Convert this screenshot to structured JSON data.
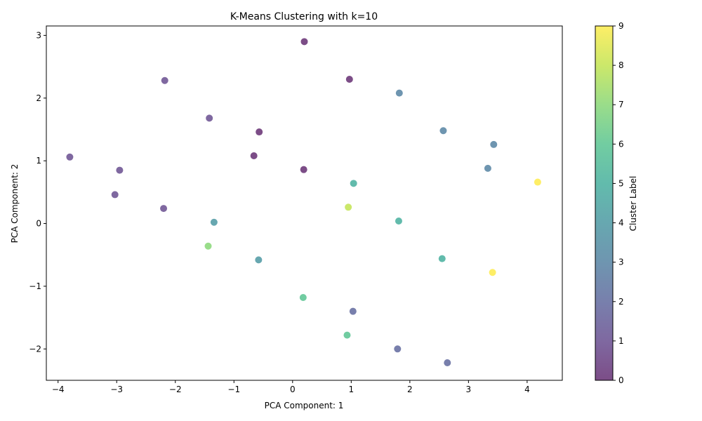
{
  "chart_data": {
    "type": "scatter",
    "title": "K-Means Clustering with k=10",
    "xlabel": "PCA Component: 1",
    "ylabel": "PCA Component: 2",
    "colorbar_label": "Cluster Label",
    "xlim": [
      -4.2,
      4.6
    ],
    "ylim": [
      -2.5,
      3.15
    ],
    "xticks": [
      -4,
      -3,
      -2,
      -1,
      0,
      1,
      2,
      3,
      4
    ],
    "yticks": [
      -2,
      -1,
      0,
      1,
      2,
      3
    ],
    "colorbar_ticks": [
      0,
      1,
      2,
      3,
      4,
      5,
      6,
      7,
      8,
      9
    ],
    "colorbar_range": [
      0,
      9
    ],
    "colormap": "viridis",
    "point_alpha": 0.7,
    "grid": false,
    "points": [
      {
        "x": 0.2,
        "y": 2.9,
        "cluster": 0
      },
      {
        "x": 0.97,
        "y": 2.3,
        "cluster": 0
      },
      {
        "x": -0.57,
        "y": 1.46,
        "cluster": 0
      },
      {
        "x": -0.66,
        "y": 1.08,
        "cluster": 0
      },
      {
        "x": 0.19,
        "y": 0.86,
        "cluster": 0
      },
      {
        "x": -1.42,
        "y": 1.68,
        "cluster": 1
      },
      {
        "x": -3.8,
        "y": 1.06,
        "cluster": 1
      },
      {
        "x": -2.95,
        "y": 0.85,
        "cluster": 1
      },
      {
        "x": -3.03,
        "y": 0.46,
        "cluster": 1
      },
      {
        "x": -2.2,
        "y": 0.24,
        "cluster": 1
      },
      {
        "x": -2.18,
        "y": 2.28,
        "cluster": 1
      },
      {
        "x": 1.03,
        "y": -1.4,
        "cluster": 2
      },
      {
        "x": 1.79,
        "y": -2.0,
        "cluster": 2
      },
      {
        "x": 2.64,
        "y": -2.22,
        "cluster": 2
      },
      {
        "x": 1.82,
        "y": 2.08,
        "cluster": 3
      },
      {
        "x": 2.57,
        "y": 1.48,
        "cluster": 3
      },
      {
        "x": 3.43,
        "y": 1.26,
        "cluster": 3
      },
      {
        "x": 3.33,
        "y": 0.88,
        "cluster": 3
      },
      {
        "x": -1.34,
        "y": 0.02,
        "cluster": 4
      },
      {
        "x": -0.58,
        "y": -0.58,
        "cluster": 4
      },
      {
        "x": 1.04,
        "y": 0.64,
        "cluster": 5
      },
      {
        "x": 1.81,
        "y": 0.04,
        "cluster": 5
      },
      {
        "x": 2.55,
        "y": -0.56,
        "cluster": 5
      },
      {
        "x": 0.18,
        "y": -1.18,
        "cluster": 6
      },
      {
        "x": 0.93,
        "y": -1.78,
        "cluster": 6
      },
      {
        "x": -1.44,
        "y": -0.36,
        "cluster": 7
      },
      {
        "x": 0.95,
        "y": 0.26,
        "cluster": 8
      },
      {
        "x": 4.18,
        "y": 0.66,
        "cluster": 9
      },
      {
        "x": 3.41,
        "y": -0.78,
        "cluster": 9
      }
    ]
  }
}
